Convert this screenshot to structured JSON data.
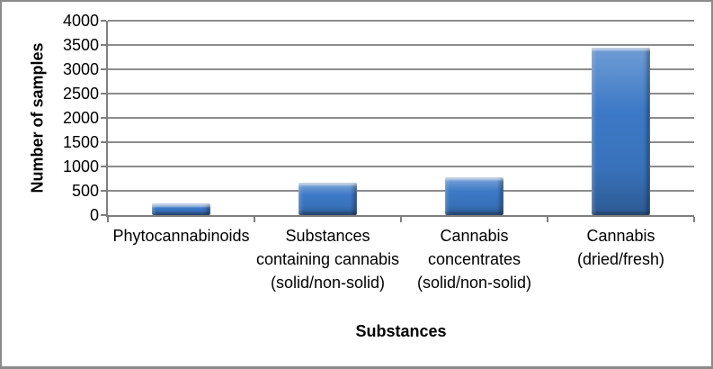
{
  "chart_data": {
    "type": "bar",
    "title": "",
    "categories": [
      "Phytocannabinoids",
      "Substances containing cannabis (solid/non-solid)",
      "Cannabis concentrates (solid/non-solid)",
      "Cannabis (dried/fresh)"
    ],
    "values": [
      250,
      670,
      780,
      3450
    ],
    "xlabel": "Substances",
    "ylabel": "Number of samples",
    "ylim": [
      0,
      4000
    ],
    "yticks": [
      0,
      500,
      1000,
      1500,
      2000,
      2500,
      3000,
      3500,
      4000
    ],
    "grid": true,
    "legend_position": "none",
    "bar_color": "#3c79c6",
    "gridline_color": "#8c8c8c",
    "axis_color": "#7f7f7f",
    "frame_border_color": "#8b8b8b"
  }
}
